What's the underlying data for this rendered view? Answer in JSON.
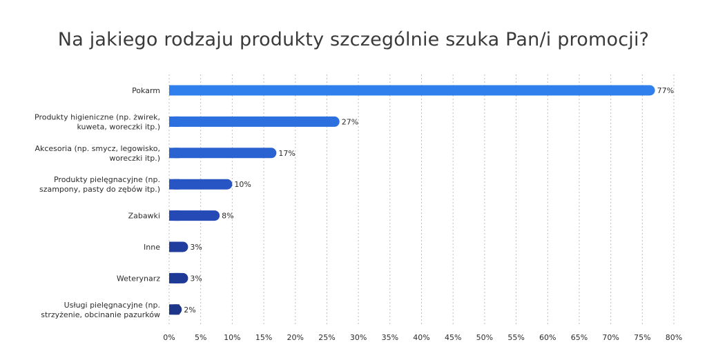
{
  "chart_data": {
    "type": "bar",
    "orientation": "horizontal",
    "title": "Na jakiego rodzaju produkty szczególnie szuka Pan/i promocji?",
    "categories": [
      [
        "Pokarm"
      ],
      [
        "Produkty higieniczne (np. żwirek,",
        "kuweta, woreczki itp.)"
      ],
      [
        "Akcesoria (np. smycz, legowisko,",
        "woreczki itp.)"
      ],
      [
        "Produkty pielęgnacyjne (np.",
        "szampony, pasty do zębów itp.)"
      ],
      [
        "Zabawki"
      ],
      [
        "Inne"
      ],
      [
        "Weterynarz"
      ],
      [
        "Usługi pielęgnacyjne (np.",
        "strzyżenie, obcinanie pazurków"
      ]
    ],
    "values": [
      77,
      27,
      17,
      10,
      8,
      3,
      3,
      2
    ],
    "value_labels": [
      "77%",
      "27%",
      "17%",
      "10%",
      "8%",
      "3%",
      "3%",
      "2%"
    ],
    "bar_colors": [
      "#2f80ed",
      "#2c70e0",
      "#2a62d2",
      "#2855c4",
      "#2549b5",
      "#213e9f",
      "#1f3a96",
      "#1d3689"
    ],
    "xlim": [
      0,
      80
    ],
    "x_ticks": [
      "0%",
      "5%",
      "10%",
      "15%",
      "20%",
      "25%",
      "30%",
      "35%",
      "40%",
      "45%",
      "50%",
      "55%",
      "60%",
      "65%",
      "70%",
      "75%",
      "80%"
    ],
    "x_tick_values": [
      0,
      5,
      10,
      15,
      20,
      25,
      30,
      35,
      40,
      45,
      50,
      55,
      60,
      65,
      70,
      75,
      80
    ],
    "grid": true,
    "legend": false
  }
}
